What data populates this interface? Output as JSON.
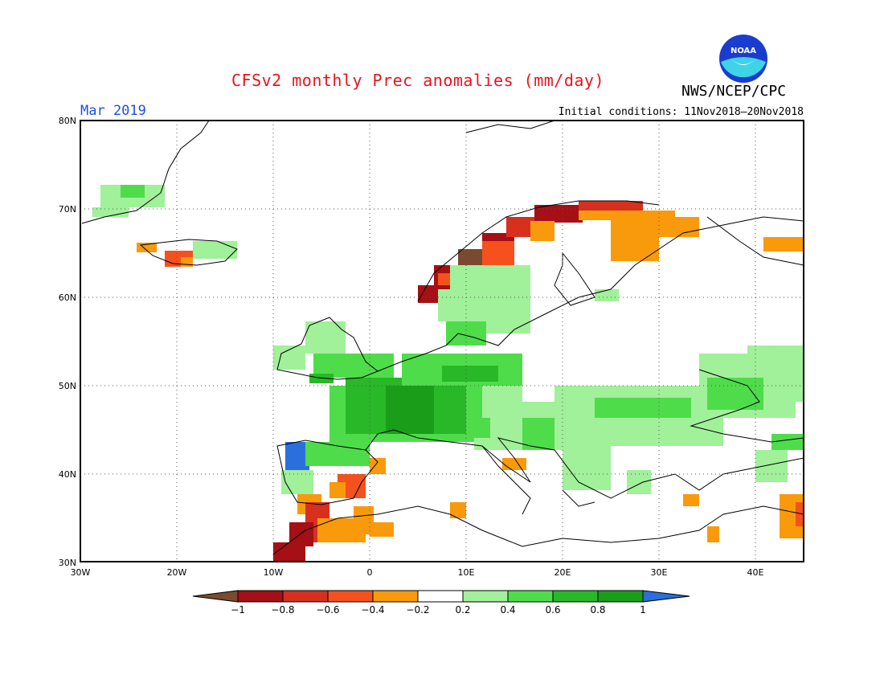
{
  "title": "CFSv2 monthly Prec anomalies (mm/day)",
  "agency": "NWS/NCEP/CPC",
  "logo_text": "NOAA",
  "month": "Mar 2019",
  "initial_conditions": "Initial conditions: 11Nov2018–20Nov2018",
  "map": {
    "lon_range": [
      -30,
      45
    ],
    "lat_range": [
      30,
      80
    ],
    "lat_labels": [
      "80N",
      "70N",
      "60N",
      "50N",
      "40N",
      "30N"
    ],
    "lon_labels": [
      "30W",
      "20W",
      "10W",
      "0",
      "10E",
      "20E",
      "30E",
      "40E"
    ]
  },
  "legend": {
    "tick_labels": [
      "−1",
      "−0.8",
      "−0.6",
      "−0.4",
      "−0.2",
      "0.2",
      "0.4",
      "0.6",
      "0.8",
      "1"
    ],
    "colors": {
      "below_-1": "#7a4a30",
      "-1_-0.8": "#a50f15",
      "-0.8_-0.6": "#d7301f",
      "-0.6_-0.4": "#f4511e",
      "-0.4_-0.2": "#f99a0c",
      "-0.2_0.2": "#ffffff",
      "0.2_0.4": "#a1f09a",
      "0.4_0.6": "#4fdc4a",
      "0.6_0.8": "#28b828",
      "0.8_1": "#1a9e1a",
      "above_1": "#2a6fdc"
    }
  }
}
